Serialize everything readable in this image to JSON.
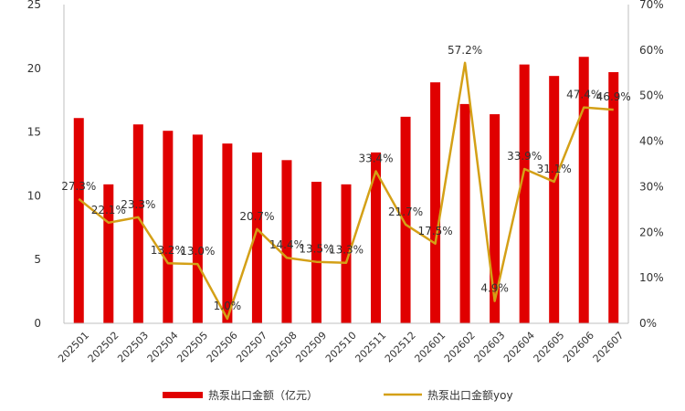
{
  "chart_data": {
    "type": "bar+line",
    "categories": [
      "202501",
      "202502",
      "202503",
      "202504",
      "202505",
      "202506",
      "202507",
      "202508",
      "202509",
      "202510",
      "202511",
      "202512",
      "202601",
      "202602",
      "202603",
      "202604",
      "202605",
      "202606",
      "202607"
    ],
    "series": [
      {
        "name": "热泵出口金额（亿元）",
        "type": "bar",
        "axis": "left",
        "color": "#E00000",
        "values": [
          16.1,
          10.9,
          15.6,
          15.1,
          14.8,
          14.1,
          13.4,
          12.8,
          11.1,
          10.9,
          13.4,
          16.2,
          18.9,
          17.2,
          16.4,
          20.3,
          19.4,
          20.9,
          19.7
        ]
      },
      {
        "name": "热泵出口金额yoy",
        "type": "line",
        "axis": "right",
        "color": "#D4A017",
        "values": [
          27.3,
          22.1,
          23.3,
          13.2,
          13.0,
          1.0,
          20.7,
          14.4,
          13.5,
          13.3,
          33.4,
          21.7,
          17.5,
          57.2,
          4.9,
          33.9,
          31.1,
          47.4,
          46.9
        ],
        "labels": [
          "27.3%",
          "22.1%",
          "23.3%",
          "13.2%",
          "13.0%",
          "1.0%",
          "20.7%",
          "14.4%",
          "13.5%",
          "13.3%",
          "33.4%",
          "21.7%",
          "17.5%",
          "57.2%",
          "4.9%",
          "33.9%",
          "31.1%",
          "47.4%",
          "46.9%"
        ]
      }
    ],
    "y_left": {
      "min": 0,
      "max": 25,
      "ticks": [
        "0",
        "5",
        "10",
        "15",
        "20",
        "25"
      ]
    },
    "y_right": {
      "min": 0,
      "max": 70,
      "ticks": [
        "0%",
        "10%",
        "20%",
        "30%",
        "40%",
        "50%",
        "60%",
        "70%"
      ]
    },
    "grid": false,
    "legend_position": "bottom"
  }
}
